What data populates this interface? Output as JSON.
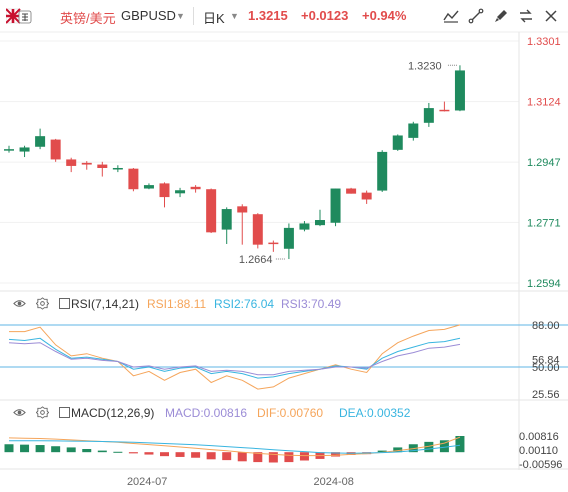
{
  "header": {
    "symbol_cn": "英镑/美元",
    "symbol_code": "GBPUSD",
    "period": "日K",
    "price": "1.3215",
    "change": "+0.0123",
    "change_pct": "+0.94%",
    "toolbar_icons": [
      "indicator-icon",
      "drawing-icon",
      "brush-icon",
      "compare-icon",
      "close-icon"
    ]
  },
  "colors": {
    "up": "#1f8a5e",
    "down": "#e14c4c",
    "rsi1": "#f5a55b",
    "rsi2": "#39b5e0",
    "rsi3": "#9b8cd6",
    "macd": "#9b8cd6",
    "dif": "#f5a55b",
    "dea": "#39b5e0"
  },
  "chart_data": [
    {
      "type": "candlestick",
      "price_axis_labels": [
        "1.3301",
        "1.3124",
        "1.2947",
        "1.2771",
        "1.2594"
      ],
      "price_axis_values": [
        1.3301,
        1.3124,
        1.2947,
        1.2771,
        1.2594
      ],
      "annotations": [
        {
          "label": "1.3230",
          "value": 1.323
        },
        {
          "label": "1.2664",
          "value": 1.2664
        }
      ],
      "x_tick_labels": [
        "2024-07",
        "2024-08"
      ],
      "candles": [
        {
          "o": 1.2985,
          "h": 1.2995,
          "l": 1.2975,
          "c": 1.2985
        },
        {
          "o": 1.2978,
          "h": 1.2995,
          "l": 1.2962,
          "c": 1.299
        },
        {
          "o": 1.2992,
          "h": 1.3045,
          "l": 1.2985,
          "c": 1.3023
        },
        {
          "o": 1.3013,
          "h": 1.3015,
          "l": 1.2948,
          "c": 1.2955
        },
        {
          "o": 1.2955,
          "h": 1.296,
          "l": 1.2918,
          "c": 1.2936
        },
        {
          "o": 1.2945,
          "h": 1.295,
          "l": 1.2925,
          "c": 1.294
        },
        {
          "o": 1.294,
          "h": 1.2948,
          "l": 1.2905,
          "c": 1.293
        },
        {
          "o": 1.293,
          "h": 1.2938,
          "l": 1.2918,
          "c": 1.293
        },
        {
          "o": 1.2928,
          "h": 1.293,
          "l": 1.2862,
          "c": 1.2868
        },
        {
          "o": 1.287,
          "h": 1.2885,
          "l": 1.2868,
          "c": 1.288
        },
        {
          "o": 1.2885,
          "h": 1.2888,
          "l": 1.2815,
          "c": 1.2845
        },
        {
          "o": 1.2856,
          "h": 1.2872,
          "l": 1.2845,
          "c": 1.2865
        },
        {
          "o": 1.2875,
          "h": 1.288,
          "l": 1.2858,
          "c": 1.2868
        },
        {
          "o": 1.2868,
          "h": 1.287,
          "l": 1.274,
          "c": 1.2742
        },
        {
          "o": 1.275,
          "h": 1.2815,
          "l": 1.2708,
          "c": 1.281
        },
        {
          "o": 1.2818,
          "h": 1.2824,
          "l": 1.2706,
          "c": 1.28
        },
        {
          "o": 1.2795,
          "h": 1.2798,
          "l": 1.2695,
          "c": 1.2706
        },
        {
          "o": 1.2712,
          "h": 1.2718,
          "l": 1.2685,
          "c": 1.271
        },
        {
          "o": 1.2694,
          "h": 1.2768,
          "l": 1.2664,
          "c": 1.2755
        },
        {
          "o": 1.275,
          "h": 1.2775,
          "l": 1.2745,
          "c": 1.2768
        },
        {
          "o": 1.2763,
          "h": 1.2808,
          "l": 1.276,
          "c": 1.2778
        },
        {
          "o": 1.277,
          "h": 1.287,
          "l": 1.276,
          "c": 1.287
        },
        {
          "o": 1.287,
          "h": 1.2872,
          "l": 1.2855,
          "c": 1.2855
        },
        {
          "o": 1.2858,
          "h": 1.2864,
          "l": 1.2825,
          "c": 1.2838
        },
        {
          "o": 1.2864,
          "h": 1.2982,
          "l": 1.286,
          "c": 1.2977
        },
        {
          "o": 1.2983,
          "h": 1.3028,
          "l": 1.298,
          "c": 1.3025
        },
        {
          "o": 1.3018,
          "h": 1.3065,
          "l": 1.301,
          "c": 1.306
        },
        {
          "o": 1.3062,
          "h": 1.312,
          "l": 1.305,
          "c": 1.3105
        },
        {
          "o": 1.31,
          "h": 1.3124,
          "l": 1.3095,
          "c": 1.3098
        },
        {
          "o": 1.3098,
          "h": 1.323,
          "l": 1.3096,
          "c": 1.3215
        }
      ]
    },
    {
      "type": "line",
      "indicator": "RSI(7,14,21)",
      "legend": [
        {
          "label": "RSI1:88.11",
          "color": "#f5a55b"
        },
        {
          "label": "RSI2:76.04",
          "color": "#39b5e0"
        },
        {
          "label": "RSI3:70.49",
          "color": "#9b8cd6"
        }
      ],
      "axis_labels": [
        "88.00",
        "56.84",
        "50.00",
        "25.56"
      ],
      "axis_values": [
        88,
        56.84,
        50,
        25.56
      ],
      "reference_lines": [
        88,
        50
      ],
      "series": [
        {
          "name": "RSI1",
          "values": [
            82,
            82,
            86,
            70,
            60,
            62,
            58,
            55,
            42,
            46,
            38,
            45,
            48,
            36,
            42,
            38,
            30,
            32,
            40,
            44,
            48,
            52,
            48,
            45,
            62,
            72,
            78,
            83,
            84,
            88.11
          ]
        },
        {
          "name": "RSI2",
          "values": [
            75,
            74,
            76,
            66,
            58,
            59,
            57,
            55,
            48,
            50,
            46,
            49,
            50,
            44,
            46,
            44,
            40,
            41,
            44,
            46,
            48,
            51,
            50,
            48,
            58,
            64,
            68,
            72,
            73,
            76.04
          ]
        },
        {
          "name": "RSI3",
          "values": [
            72,
            71,
            72,
            64,
            57,
            58,
            56,
            55,
            50,
            51,
            48,
            50,
            51,
            46,
            47,
            46,
            43,
            43,
            46,
            47,
            48,
            50,
            50,
            49,
            55,
            60,
            63,
            67,
            68,
            70.49
          ]
        }
      ]
    },
    {
      "type": "bar",
      "indicator": "MACD(12,26,9)",
      "legend": [
        {
          "label": "MACD:0.00816",
          "color": "#9b8cd6"
        },
        {
          "label": "DIF:0.00760",
          "color": "#f5a55b"
        },
        {
          "label": "DEA:0.00352",
          "color": "#39b5e0"
        }
      ],
      "axis_labels": [
        "0.00816",
        "0.00110",
        "-0.00596"
      ],
      "axis_values": [
        0.00816,
        0.0011,
        -0.00596
      ],
      "macd": [
        0.004,
        0.0038,
        0.0036,
        0.003,
        0.0024,
        0.0016,
        0.0008,
        0.0002,
        -0.0006,
        -0.0012,
        -0.002,
        -0.0024,
        -0.0028,
        -0.0036,
        -0.004,
        -0.0046,
        -0.005,
        -0.0052,
        -0.005,
        -0.0042,
        -0.0034,
        -0.0022,
        -0.0014,
        -0.001,
        0.0008,
        0.0024,
        0.004,
        0.0052,
        0.006,
        0.00816
      ],
      "dif": [
        0.0072,
        0.007,
        0.0069,
        0.0066,
        0.0062,
        0.0058,
        0.0054,
        0.005,
        0.0044,
        0.0038,
        0.0032,
        0.0026,
        0.002,
        0.0013,
        0.0007,
        0.0,
        -0.0006,
        -0.0011,
        -0.0015,
        -0.0017,
        -0.0017,
        -0.0015,
        -0.0011,
        -0.0007,
        -0.0001,
        0.0008,
        0.0018,
        0.003,
        0.0046,
        0.0076
      ],
      "dea": [
        0.0058,
        0.0058,
        0.0058,
        0.0057,
        0.0056,
        0.0055,
        0.0054,
        0.0052,
        0.005,
        0.0047,
        0.0044,
        0.0041,
        0.0037,
        0.0033,
        0.0028,
        0.0023,
        0.0018,
        0.0012,
        0.0007,
        0.0003,
        -0.0002,
        -0.0004,
        -0.0005,
        -0.0004,
        -0.0002,
        0.0001,
        0.0008,
        0.0016,
        0.0025,
        0.00352
      ]
    }
  ]
}
